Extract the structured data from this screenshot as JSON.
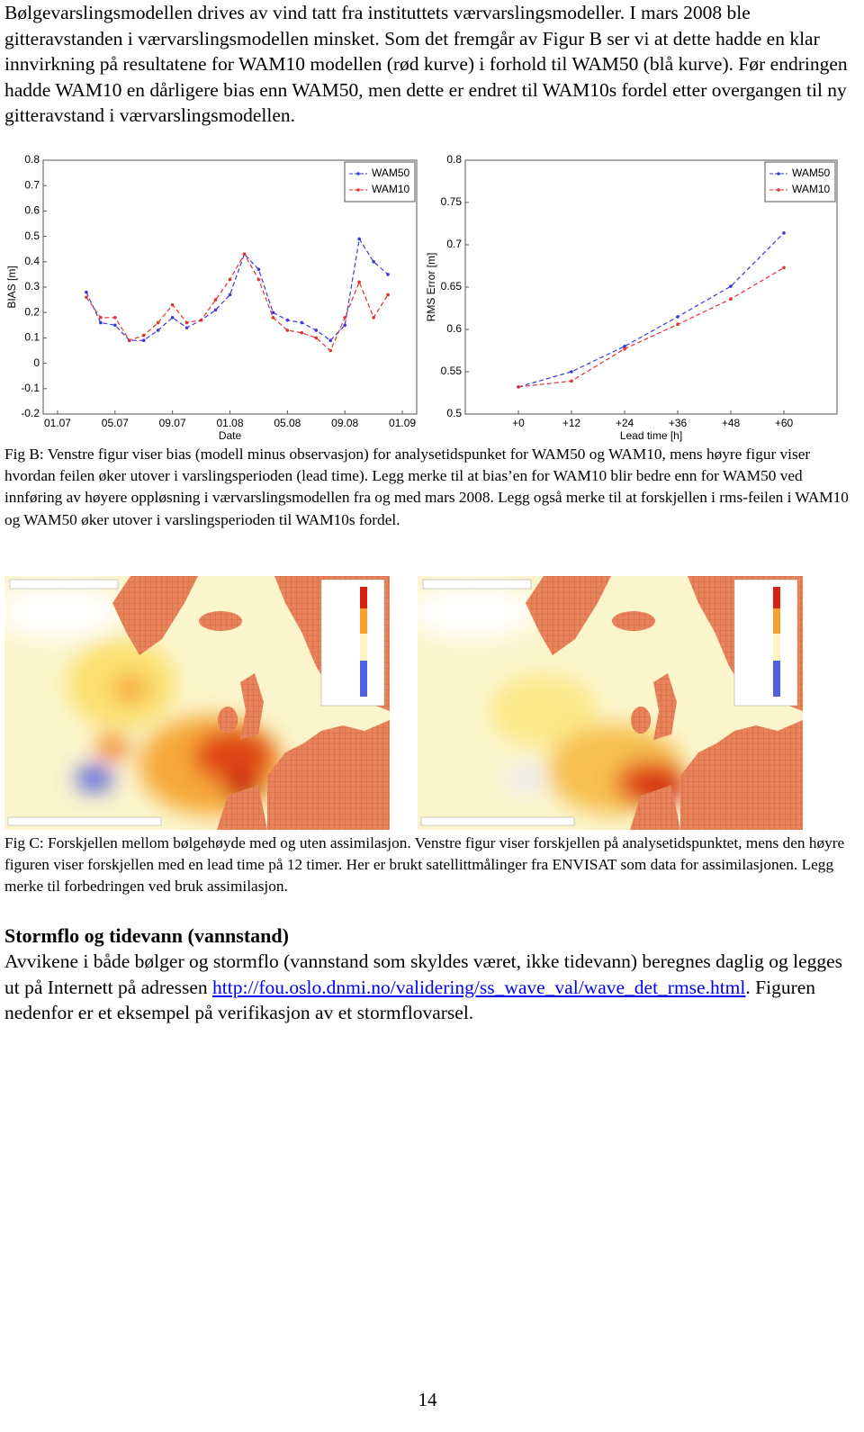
{
  "paragraph_1": "Bølgevarslingsmodellen drives av vind tatt fra instituttets værvarslingsmodeller. I mars 2008 ble gitteravstanden i værvarslingsmodellen minsket. Som det fremgår av Figur B ser vi at dette hadde en klar innvirkning på resultatene for WAM10 modellen (rød kurve) i forhold til WAM50 (blå kurve). Før endringen hadde WAM10 en dårligere bias enn WAM50, men dette er endret til WAM10s fordel etter overgangen til ny gitteravstand i værvarslingsmodellen.",
  "chart_data": [
    {
      "type": "line",
      "y_label": "BIAS [m]",
      "x_label": "Date",
      "x": [
        "03.07",
        "04.07",
        "05.07",
        "06.07",
        "07.07",
        "08.07",
        "09.07",
        "10.07",
        "11.07",
        "12.07",
        "01.08",
        "02.08",
        "03.08",
        "04.08",
        "05.08",
        "06.08",
        "07.08",
        "08.08",
        "09.08",
        "10.08",
        "11.08",
        "12.08"
      ],
      "xlim": [
        "12.06",
        "02.09"
      ],
      "xticks": [
        "01.07",
        "05.07",
        "09.07",
        "01.08",
        "05.08",
        "09.08",
        "01.09"
      ],
      "ylim": [
        -0.2,
        0.8
      ],
      "yticks": [
        -0.2,
        -0.1,
        0,
        0.1,
        0.2,
        0.3,
        0.4,
        0.5,
        0.6,
        0.7,
        0.8
      ],
      "grid": false,
      "legend": "upper right",
      "series": [
        {
          "name": "WAM50",
          "color": "#3a3ad6",
          "values": [
            0.28,
            0.16,
            0.15,
            0.09,
            0.09,
            0.13,
            0.18,
            0.14,
            0.17,
            0.21,
            0.27,
            0.43,
            0.37,
            0.2,
            0.17,
            0.16,
            0.13,
            0.09,
            0.15,
            0.49,
            0.4,
            0.35
          ]
        },
        {
          "name": "WAM10",
          "color": "#e03232",
          "values": [
            0.26,
            0.18,
            0.18,
            0.09,
            0.11,
            0.16,
            0.23,
            0.16,
            0.17,
            0.25,
            0.33,
            0.43,
            0.33,
            0.18,
            0.13,
            0.12,
            0.1,
            0.05,
            0.18,
            0.32,
            0.18,
            0.27
          ]
        }
      ]
    },
    {
      "type": "line",
      "y_label": "RMS Error [m]",
      "x_label": "Lead time [h]",
      "x": [
        0,
        12,
        24,
        36,
        48,
        60
      ],
      "xlim": [
        -12,
        72
      ],
      "xticks": [
        {
          "value": 0,
          "label": "+0"
        },
        {
          "value": 12,
          "label": "+12"
        },
        {
          "value": 24,
          "label": "+24"
        },
        {
          "value": 36,
          "label": "+36"
        },
        {
          "value": 48,
          "label": "+48"
        },
        {
          "value": 60,
          "label": "+60"
        }
      ],
      "ylim": [
        0.5,
        0.8
      ],
      "yticks": [
        0.5,
        0.55,
        0.6,
        0.65,
        0.7,
        0.75,
        0.8
      ],
      "grid": false,
      "legend": "upper right",
      "series": [
        {
          "name": "WAM50",
          "color": "#3a3ad6",
          "values": [
            0.532,
            0.55,
            0.58,
            0.615,
            0.651,
            0.714
          ]
        },
        {
          "name": "WAM10",
          "color": "#e03232",
          "values": [
            0.532,
            0.539,
            0.577,
            0.606,
            0.636,
            0.673
          ]
        }
      ]
    }
  ],
  "figure_b_caption": "Fig B: Venstre figur viser bias (modell minus observasjon) for analysetidspunket for WAM50 og WAM10, mens høyre figur viser hvordan feilen øker utover i varslingsperioden (lead time). Legg merke til at bias’en for WAM10 blir bedre enn for WAM50 ved innføring av høyere oppløsning i værvarslingsmodellen fra og med mars 2008. Legg også merke til at forskjellen i rms-feilen i WAM10 og WAM50 øker utover i varslingsperioden til WAM10s fordel.",
  "figure_c_caption": "Fig C: Forskjellen mellom bølgehøyde med og uten assimilasjon. Venstre figur viser forskjellen på analysetidspunktet, mens den høyre figuren viser forskjellen med en lead time på 12 timer. Her er brukt satellittmålinger fra ENVISAT som data for assimilasjonen. Legg merke til forbedringen ved bruk assimilasjon.",
  "section_heading": "Stormflo og tidevann (vannstand)",
  "paragraph_2": {
    "text_before": "Avvikene i både bølger og stormflo (vannstand som skyldes været, ikke tidevann) beregnes daglig og legges ut på Internett på adressen ",
    "link": "http://fou.oslo.dnmi.no/validering/ss_wave_val/wave_det_rmse.html",
    "text_after": ". Figuren nedenfor er et eksempel på verifikasjon av et stormflovarsel."
  },
  "page_number": "14"
}
